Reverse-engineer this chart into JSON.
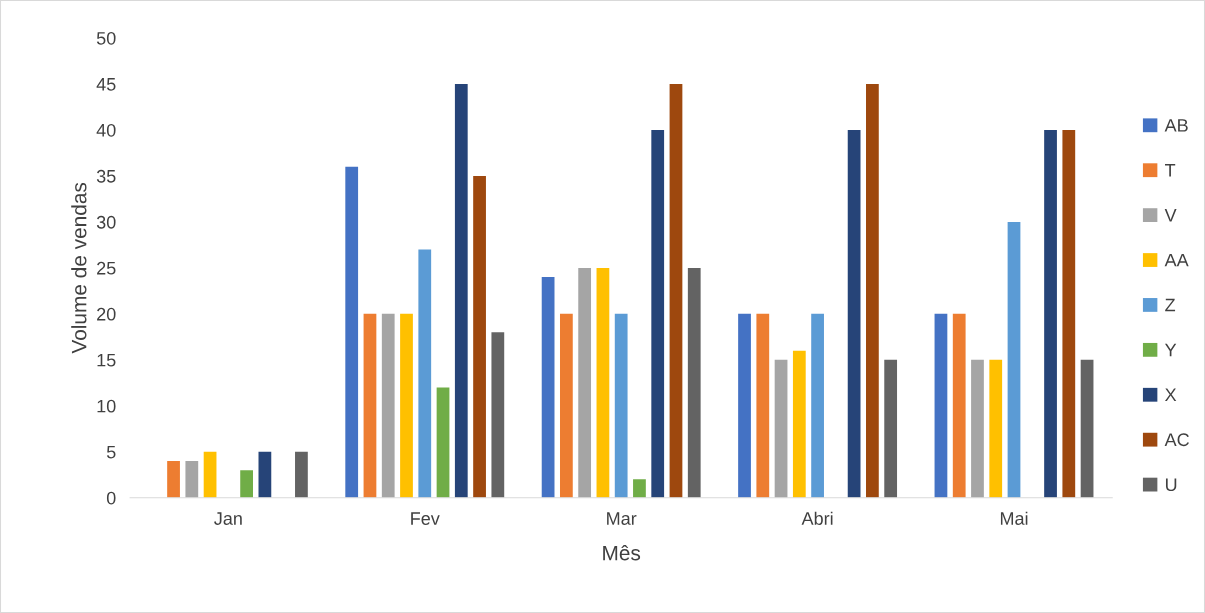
{
  "chart_data": {
    "type": "bar",
    "xlabel": "Mês",
    "ylabel": "Volume de vendas",
    "categories": [
      "Jan",
      "Fev",
      "Mar",
      "Abri",
      "Mai"
    ],
    "ylim": [
      0,
      50
    ],
    "yticks": [
      0,
      5,
      10,
      15,
      20,
      25,
      30,
      35,
      40,
      45,
      50
    ],
    "grid": false,
    "legend": "right",
    "series": [
      {
        "name": "AB",
        "color": "#4472c4",
        "values": [
          null,
          36,
          24,
          20,
          20
        ]
      },
      {
        "name": "T",
        "color": "#ed7d31",
        "values": [
          4,
          20,
          20,
          20,
          20
        ]
      },
      {
        "name": "V",
        "color": "#a5a5a5",
        "values": [
          4,
          20,
          25,
          15,
          15
        ]
      },
      {
        "name": "AA",
        "color": "#ffc000",
        "values": [
          5,
          20,
          25,
          16,
          15
        ]
      },
      {
        "name": "Z",
        "color": "#5b9bd5",
        "values": [
          null,
          27,
          20,
          20,
          30
        ]
      },
      {
        "name": "Y",
        "color": "#70ad47",
        "values": [
          3,
          12,
          2,
          null,
          null
        ]
      },
      {
        "name": "X",
        "color": "#264478",
        "values": [
          5,
          45,
          40,
          40,
          40
        ]
      },
      {
        "name": "AC",
        "color": "#9e480e",
        "values": [
          null,
          35,
          45,
          45,
          40
        ]
      },
      {
        "name": "U",
        "color": "#636363",
        "values": [
          5,
          18,
          25,
          15,
          15
        ]
      }
    ]
  }
}
